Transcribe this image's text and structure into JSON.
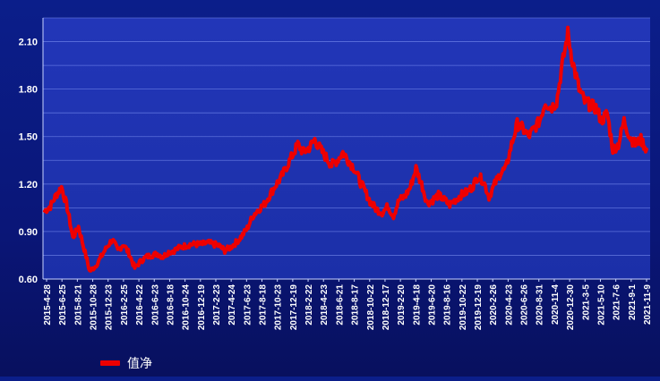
{
  "chart_data": {
    "type": "line",
    "title": "",
    "xlabel": "",
    "ylabel": "",
    "ylim": [
      0.6,
      2.25
    ],
    "yticks": [
      "0.60",
      "0.90",
      "1.20",
      "1.50",
      "1.80",
      "2.10"
    ],
    "ytick_values": [
      0.6,
      0.9,
      1.2,
      1.5,
      1.8,
      2.1
    ],
    "xticks": [
      "2015-4-28",
      "2015-6-25",
      "2015-8-21",
      "2015-10-28",
      "2015-12-23",
      "2016-2-25",
      "2016-4-22",
      "2016-6-23",
      "2016-8-18",
      "2016-10-24",
      "2016-12-19",
      "2017-2-23",
      "2017-4-24",
      "2017-6-23",
      "2017-8-18",
      "2017-10-23",
      "2017-12-19",
      "2018-2-22",
      "2018-4-23",
      "2018-6-21",
      "2018-8-17",
      "2018-10-22",
      "2018-12-17",
      "2019-2-20",
      "2019-4-18",
      "2019-6-20",
      "2019-8-16",
      "2019-10-22",
      "2019-12-19",
      "2020-2-26",
      "2020-4-23",
      "2020-6-26",
      "2020-8-31",
      "2020-11-4",
      "2020-12-30",
      "2021-3-5",
      "2021-5-10",
      "2021-7-6",
      "2021-9-1",
      "2021-11-9"
    ],
    "grid": true,
    "legend_position": "bottom-left",
    "line_color": "#ee0000",
    "series": [
      {
        "name": "值净",
        "values": [
          1.03,
          1.06,
          1.13,
          1.18,
          1.05,
          0.86,
          0.93,
          0.79,
          0.65,
          0.68,
          0.74,
          0.8,
          0.85,
          0.78,
          0.82,
          0.76,
          0.67,
          0.71,
          0.74,
          0.75,
          0.76,
          0.74,
          0.77,
          0.78,
          0.8,
          0.81,
          0.82,
          0.82,
          0.82,
          0.83,
          0.82,
          0.81,
          0.78,
          0.8,
          0.83,
          0.87,
          0.92,
          1.0,
          1.04,
          1.07,
          1.13,
          1.19,
          1.24,
          1.31,
          1.38,
          1.45,
          1.4,
          1.43,
          1.48,
          1.42,
          1.37,
          1.32,
          1.35,
          1.4,
          1.35,
          1.3,
          1.22,
          1.15,
          1.08,
          1.04,
          1.02,
          1.06,
          1.0,
          1.1,
          1.12,
          1.18,
          1.3,
          1.2,
          1.08,
          1.1,
          1.13,
          1.1,
          1.07,
          1.1,
          1.13,
          1.15,
          1.18,
          1.25,
          1.22,
          1.12,
          1.2,
          1.27,
          1.3,
          1.45,
          1.58,
          1.55,
          1.5,
          1.55,
          1.6,
          1.72,
          1.68,
          1.72,
          1.95,
          2.15,
          1.95,
          1.8,
          1.72,
          1.7,
          1.68,
          1.6,
          1.65,
          1.42,
          1.45,
          1.6,
          1.5,
          1.45,
          1.48,
          1.42
        ]
      }
    ]
  }
}
